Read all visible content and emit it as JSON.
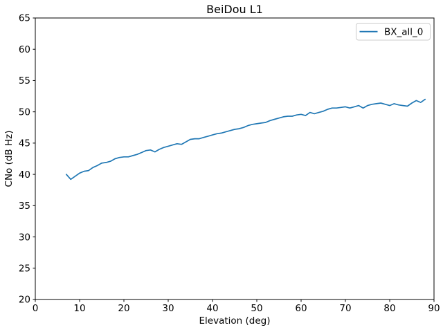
{
  "figure": {
    "title": "BeiDou L1",
    "xlabel": "Elevation (deg)",
    "ylabel": "CNo (dB Hz)",
    "legend_entries": [
      "BX_all_0"
    ],
    "background_color": "#ffffff",
    "spine_color": "#000000",
    "legend_border_color": "#cccccc"
  },
  "chart_data": {
    "type": "line",
    "title": "BeiDou L1",
    "xlabel": "Elevation (deg)",
    "ylabel": "CNo (dB Hz)",
    "xlim": [
      0,
      90
    ],
    "ylim": [
      20,
      65
    ],
    "xticks": [
      0,
      10,
      20,
      30,
      40,
      50,
      60,
      70,
      80,
      90
    ],
    "yticks": [
      20,
      25,
      30,
      35,
      40,
      45,
      50,
      55,
      60,
      65
    ],
    "grid": false,
    "legend_position": "upper right",
    "series": [
      {
        "name": "BX_all_0",
        "color": "#1f77b4",
        "line_width": 1.7,
        "x": [
          7,
          8,
          9,
          10,
          11,
          12,
          13,
          14,
          15,
          16,
          17,
          18,
          19,
          20,
          21,
          22,
          23,
          24,
          25,
          26,
          27,
          28,
          29,
          30,
          31,
          32,
          33,
          34,
          35,
          36,
          37,
          38,
          39,
          40,
          41,
          42,
          43,
          44,
          45,
          46,
          47,
          48,
          49,
          50,
          51,
          52,
          53,
          54,
          55,
          56,
          57,
          58,
          59,
          60,
          61,
          62,
          63,
          64,
          65,
          66,
          67,
          68,
          69,
          70,
          71,
          72,
          73,
          74,
          75,
          76,
          77,
          78,
          79,
          80,
          81,
          82,
          83,
          84,
          85,
          86,
          87,
          88
        ],
        "y": [
          40.0,
          39.2,
          39.7,
          40.2,
          40.5,
          40.6,
          41.1,
          41.4,
          41.8,
          41.9,
          42.1,
          42.5,
          42.7,
          42.8,
          42.8,
          43.0,
          43.2,
          43.5,
          43.8,
          43.9,
          43.6,
          44.0,
          44.3,
          44.5,
          44.7,
          44.9,
          44.8,
          45.2,
          45.6,
          45.7,
          45.7,
          45.9,
          46.1,
          46.3,
          46.5,
          46.6,
          46.8,
          47.0,
          47.2,
          47.3,
          47.5,
          47.8,
          48.0,
          48.1,
          48.2,
          48.3,
          48.6,
          48.8,
          49.0,
          49.2,
          49.3,
          49.3,
          49.5,
          49.6,
          49.4,
          49.9,
          49.7,
          49.9,
          50.1,
          50.4,
          50.6,
          50.6,
          50.7,
          50.8,
          50.6,
          50.8,
          51.0,
          50.6,
          51.0,
          51.2,
          51.3,
          51.4,
          51.2,
          51.0,
          51.3,
          51.1,
          51.0,
          50.9,
          51.4,
          51.8,
          51.5,
          52.0
        ]
      }
    ]
  }
}
